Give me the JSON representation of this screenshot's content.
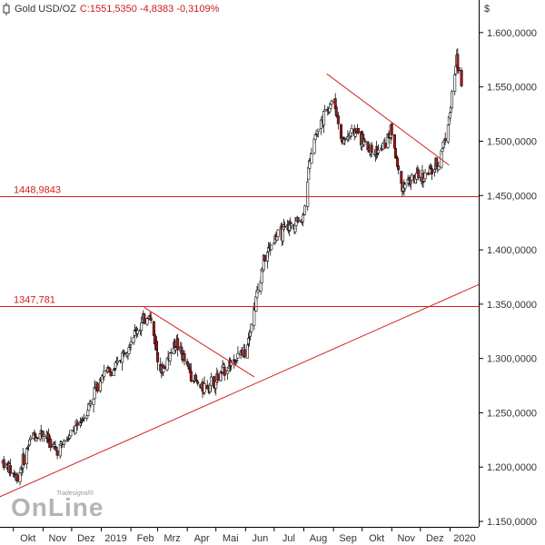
{
  "header": {
    "instrument": "Gold USD/OZ",
    "values": "C:1551,5350 -4,8383 -0,3109%"
  },
  "currency_symbol": "$",
  "logo": {
    "small": "Tradesignal®",
    "big": "OnLine"
  },
  "colors": {
    "candle": "#111111",
    "down": "#b01414",
    "line": "#d42020",
    "axis": "#000000",
    "grid": "#e0e0e0"
  },
  "chart_data": {
    "type": "candlestick",
    "title": "",
    "xlabel": "",
    "ylabel": "",
    "ylim": [
      1145,
      1630
    ],
    "y_ticks": [
      "1.150,0000",
      "1.200,0000",
      "1.250,0000",
      "1.300,0000",
      "1.350,0000",
      "1.400,0000",
      "1.450,0000",
      "1.500,0000",
      "1.550,0000",
      "1.600,0000"
    ],
    "y_tick_values": [
      1150,
      1200,
      1250,
      1300,
      1350,
      1400,
      1450,
      1500,
      1550,
      1600
    ],
    "x_labels": [
      "Okt",
      "Nov",
      "Dez",
      "2019",
      "Feb",
      "Mrz",
      "Apr",
      "Mai",
      "Jun",
      "Jul",
      "Aug",
      "Sep",
      "Okt",
      "Nov",
      "Dez",
      "2020"
    ],
    "x_label_dates": [
      "2018-10",
      "2018-11",
      "2018-12",
      "2019-01",
      "2019-02",
      "2019-03",
      "2019-04",
      "2019-05",
      "2019-06",
      "2019-07",
      "2019-08",
      "2019-09",
      "2019-10",
      "2019-11",
      "2019-12",
      "2020-01"
    ],
    "price_path": [
      {
        "date": "2018-09-20",
        "close": 1205
      },
      {
        "date": "2018-10-05",
        "close": 1190
      },
      {
        "date": "2018-10-20",
        "close": 1228
      },
      {
        "date": "2018-11-01",
        "close": 1232
      },
      {
        "date": "2018-11-15",
        "close": 1215
      },
      {
        "date": "2018-12-01",
        "close": 1230
      },
      {
        "date": "2018-12-15",
        "close": 1248
      },
      {
        "date": "2019-01-01",
        "close": 1285
      },
      {
        "date": "2019-01-15",
        "close": 1290
      },
      {
        "date": "2019-02-01",
        "close": 1318
      },
      {
        "date": "2019-02-20",
        "close": 1342
      },
      {
        "date": "2019-03-05",
        "close": 1288
      },
      {
        "date": "2019-03-20",
        "close": 1315
      },
      {
        "date": "2019-04-01",
        "close": 1292
      },
      {
        "date": "2019-04-15",
        "close": 1272
      },
      {
        "date": "2019-05-01",
        "close": 1280
      },
      {
        "date": "2019-05-15",
        "close": 1295
      },
      {
        "date": "2019-05-31",
        "close": 1306
      },
      {
        "date": "2019-06-10",
        "close": 1345
      },
      {
        "date": "2019-06-20",
        "close": 1390
      },
      {
        "date": "2019-07-01",
        "close": 1410
      },
      {
        "date": "2019-07-15",
        "close": 1420
      },
      {
        "date": "2019-07-31",
        "close": 1430
      },
      {
        "date": "2019-08-10",
        "close": 1500
      },
      {
        "date": "2019-08-20",
        "close": 1520
      },
      {
        "date": "2019-09-01",
        "close": 1540
      },
      {
        "date": "2019-09-10",
        "close": 1500
      },
      {
        "date": "2019-09-25",
        "close": 1510
      },
      {
        "date": "2019-10-05",
        "close": 1495
      },
      {
        "date": "2019-10-20",
        "close": 1490
      },
      {
        "date": "2019-11-01",
        "close": 1510
      },
      {
        "date": "2019-11-10",
        "close": 1460
      },
      {
        "date": "2019-11-25",
        "close": 1465
      },
      {
        "date": "2019-12-10",
        "close": 1470
      },
      {
        "date": "2019-12-20",
        "close": 1480
      },
      {
        "date": "2019-12-31",
        "close": 1520
      },
      {
        "date": "2020-01-08",
        "close": 1575
      },
      {
        "date": "2020-01-13",
        "close": 1551
      }
    ],
    "horizontal_lines": [
      {
        "label": "1448,9843",
        "value": 1448.9843
      },
      {
        "label": "1347,781",
        "value": 1347.781
      }
    ],
    "trend_lines": [
      {
        "from": {
          "date": "2018-09-15",
          "value": 1172
        },
        "to": {
          "date": "2020-01-31",
          "value": 1368
        }
      },
      {
        "from": {
          "date": "2019-02-15",
          "value": 1347
        },
        "to": {
          "date": "2019-06-10",
          "value": 1283
        }
      },
      {
        "from": {
          "date": "2019-08-25",
          "value": 1562
        },
        "to": {
          "date": "2019-12-31",
          "value": 1478
        }
      }
    ],
    "grid": false,
    "legend": "none"
  }
}
